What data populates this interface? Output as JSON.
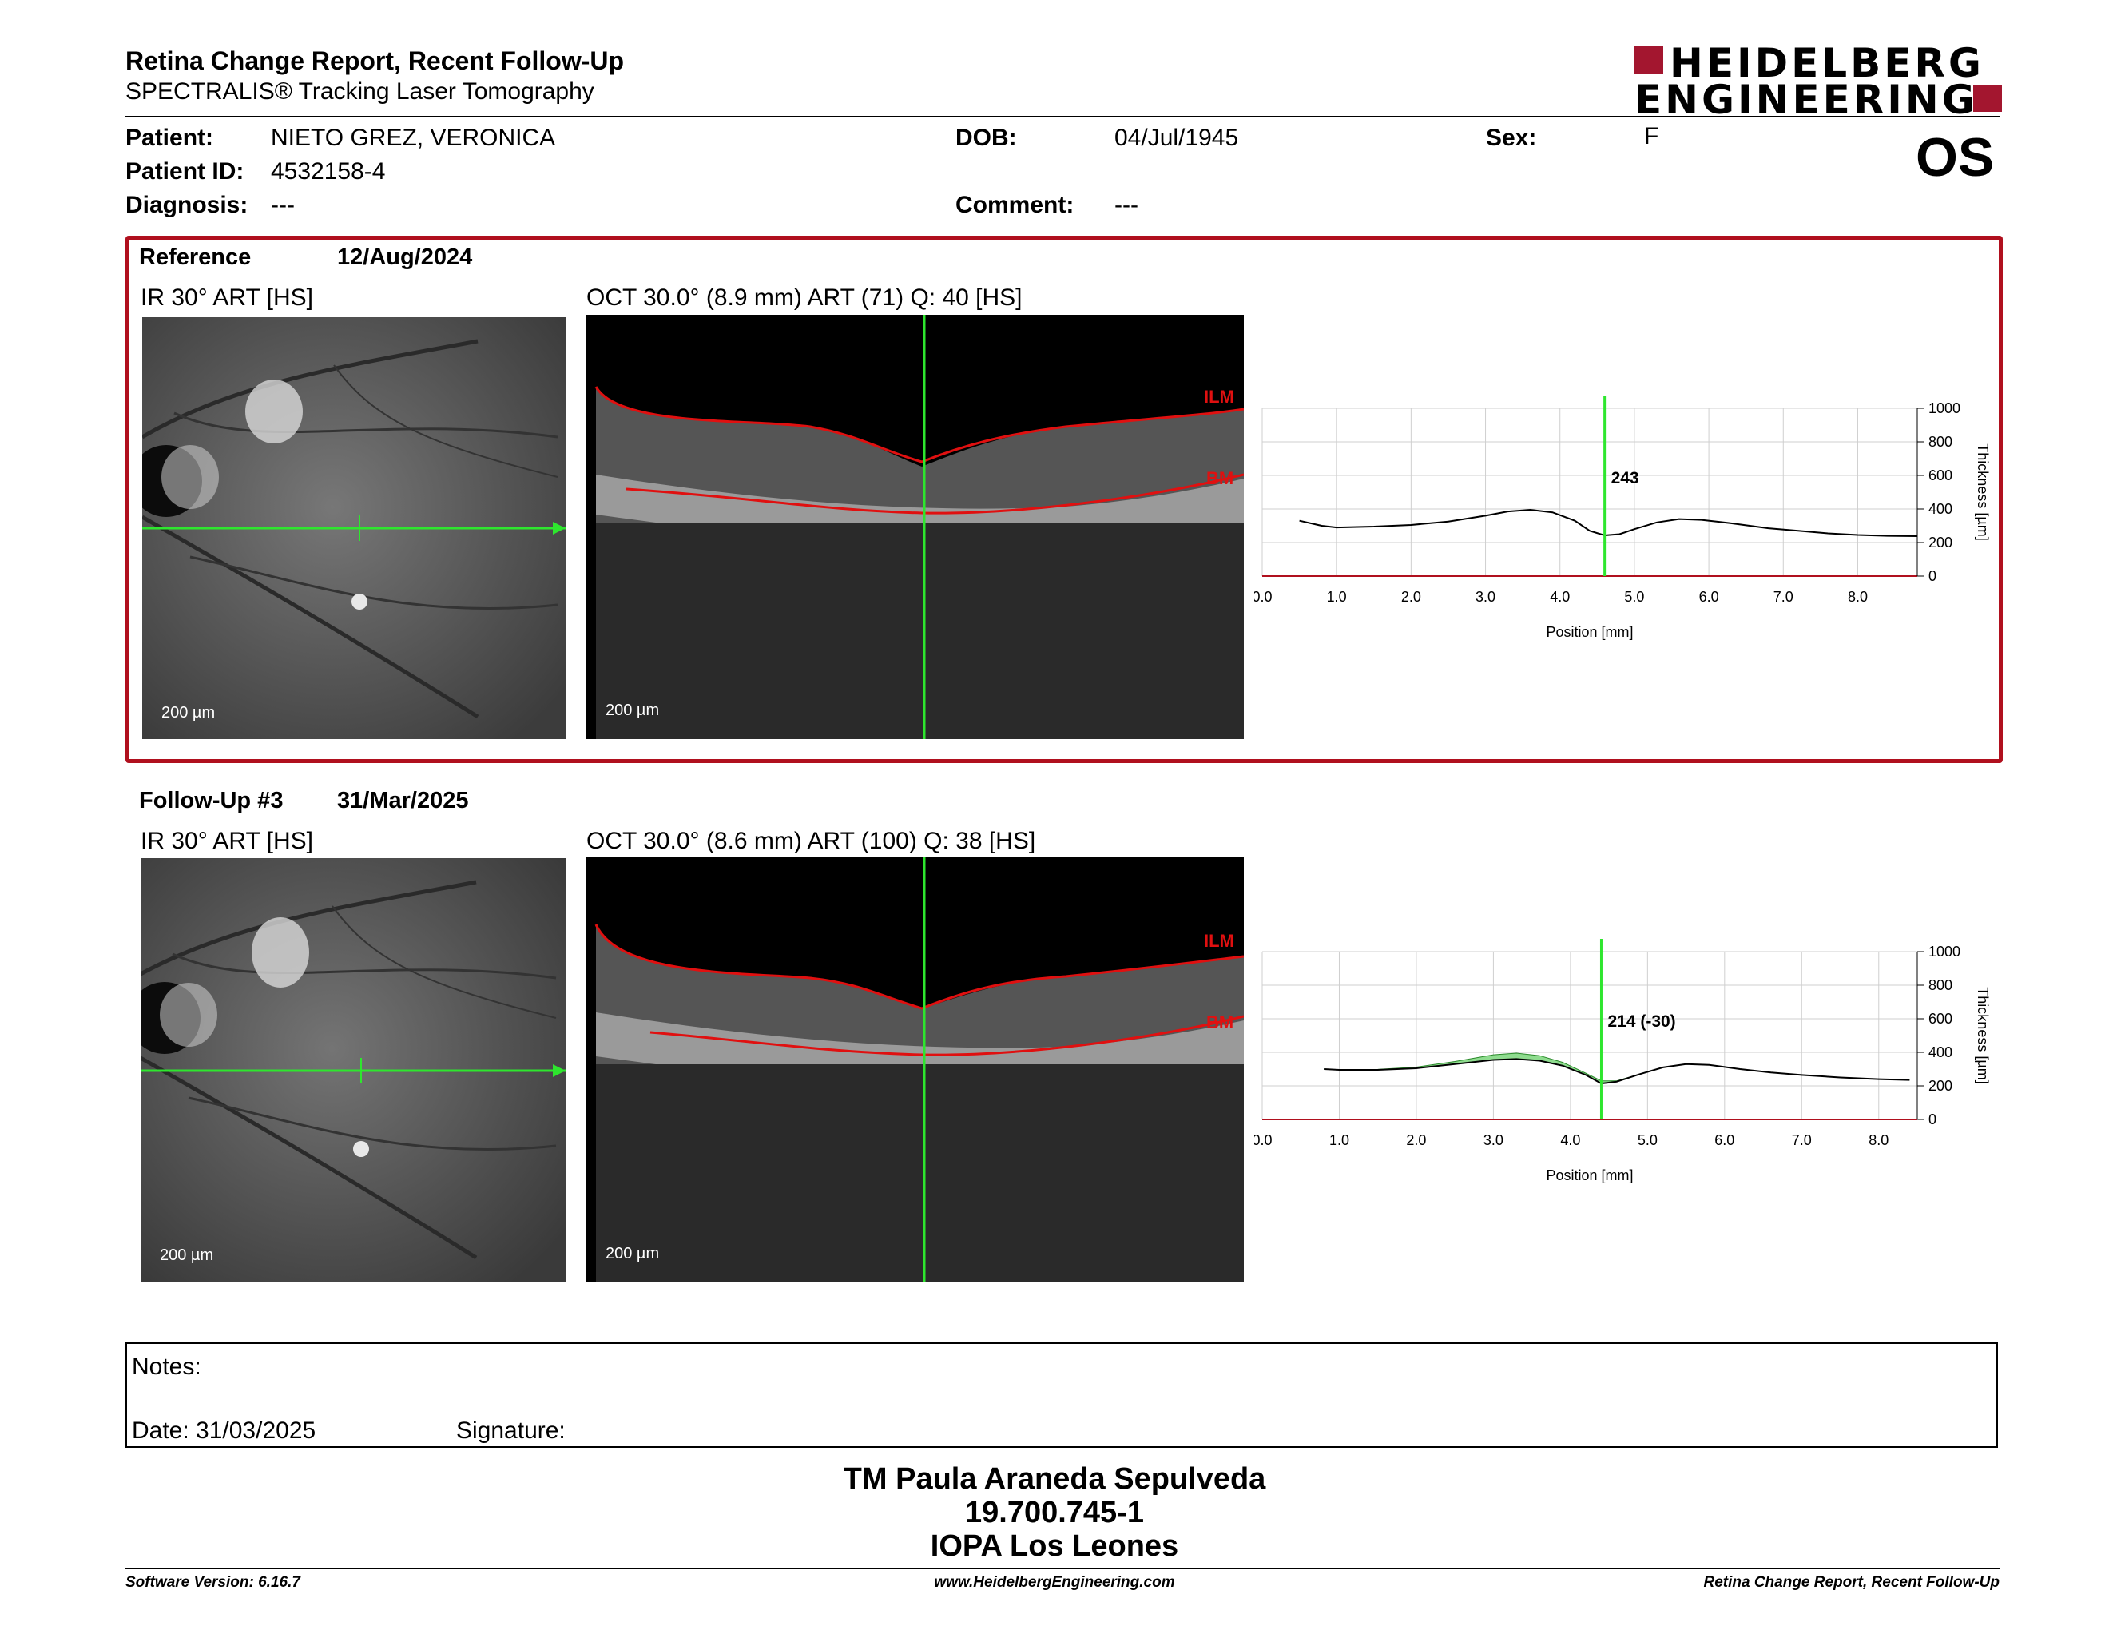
{
  "header": {
    "title": "Retina Change Report, Recent Follow-Up",
    "subtitle": "SPECTRALIS® Tracking Laser Tomography",
    "logo_line1": "HEIDELBERG",
    "logo_line2": "ENGINEERING",
    "brand_color": "#a3162f"
  },
  "patient": {
    "patient_label": "Patient:",
    "patient_value": "NIETO GREZ, VERONICA",
    "id_label": "Patient ID:",
    "id_value": "4532158-4",
    "diagnosis_label": "Diagnosis:",
    "diagnosis_value": "---",
    "dob_label": "DOB:",
    "dob_value": "04/Jul/1945",
    "comment_label": "Comment:",
    "comment_value": "---",
    "sex_label": "Sex:",
    "sex_value": "F",
    "eye": "OS"
  },
  "reference": {
    "label": "Reference",
    "date": "12/Aug/2024",
    "ir_title": "IR 30° ART [HS]",
    "oct_title": "OCT 30.0° (8.9 mm) ART (71) Q: 40 [HS]",
    "scale": "200 µm",
    "ilm": "ILM",
    "bm": "BM"
  },
  "followup": {
    "label": "Follow-Up #3",
    "date": "31/Mar/2025",
    "ir_title": "IR 30° ART [HS]",
    "oct_title": "OCT 30.0° (8.6 mm) ART (100) Q: 38 [HS]",
    "scale": "200 µm",
    "ilm": "ILM",
    "bm": "BM"
  },
  "chart_data": [
    {
      "type": "line",
      "xlabel": "Position [mm]",
      "ylabel": "Thickness [µm]",
      "xlim": [
        0,
        8.8
      ],
      "ylim": [
        0,
        1000
      ],
      "x_ticks": [
        "0.0",
        "1.0",
        "2.0",
        "3.0",
        "4.0",
        "5.0",
        "6.0",
        "7.0",
        "8.0"
      ],
      "y_ticks": [
        "0",
        "200",
        "400",
        "600",
        "800",
        "1000"
      ],
      "cursor_x": 4.6,
      "annotation": "243",
      "x": [
        0.5,
        0.8,
        1.0,
        1.5,
        2.0,
        2.5,
        3.0,
        3.3,
        3.6,
        3.9,
        4.2,
        4.4,
        4.6,
        4.8,
        5.0,
        5.3,
        5.6,
        5.9,
        6.3,
        6.8,
        7.2,
        7.6,
        8.0,
        8.4,
        8.8
      ],
      "y": [
        330,
        300,
        290,
        295,
        305,
        325,
        360,
        385,
        395,
        380,
        330,
        270,
        243,
        250,
        280,
        320,
        340,
        335,
        315,
        285,
        270,
        255,
        245,
        240,
        238
      ]
    },
    {
      "type": "line",
      "xlabel": "Position [mm]",
      "ylabel": "Thickness [µm]",
      "xlim": [
        0,
        8.5
      ],
      "ylim": [
        0,
        1000
      ],
      "x_ticks": [
        "0.0",
        "1.0",
        "2.0",
        "3.0",
        "4.0",
        "5.0",
        "6.0",
        "7.0",
        "8.0"
      ],
      "y_ticks": [
        "0",
        "200",
        "400",
        "600",
        "800",
        "1000"
      ],
      "cursor_x": 4.4,
      "annotation": "214 (-30)",
      "x": [
        0.8,
        1.0,
        1.5,
        2.0,
        2.5,
        3.0,
        3.3,
        3.6,
        3.9,
        4.2,
        4.4,
        4.6,
        4.9,
        5.2,
        5.5,
        5.8,
        6.2,
        6.6,
        7.0,
        7.5,
        8.0,
        8.4
      ],
      "y": [
        300,
        295,
        295,
        305,
        330,
        355,
        360,
        350,
        320,
        265,
        214,
        225,
        270,
        310,
        330,
        325,
        300,
        280,
        265,
        250,
        240,
        235
      ],
      "reference_y": [
        300,
        295,
        298,
        312,
        345,
        385,
        395,
        380,
        340,
        275,
        230,
        230,
        270,
        310,
        330,
        325,
        300,
        280,
        265,
        250,
        240,
        235
      ]
    }
  ],
  "notes": {
    "label": "Notes:",
    "date_label": "Date: 31/03/2025",
    "signature_label": "Signature:"
  },
  "signer": {
    "name": "TM Paula Araneda Sepulveda",
    "id": "19.700.745-1",
    "institution": "IOPA Los Leones"
  },
  "footer": {
    "version": "Software Version: 6.16.7",
    "url": "www.HeidelbergEngineering.com",
    "report": "Retina Change Report, Recent Follow-Up"
  }
}
